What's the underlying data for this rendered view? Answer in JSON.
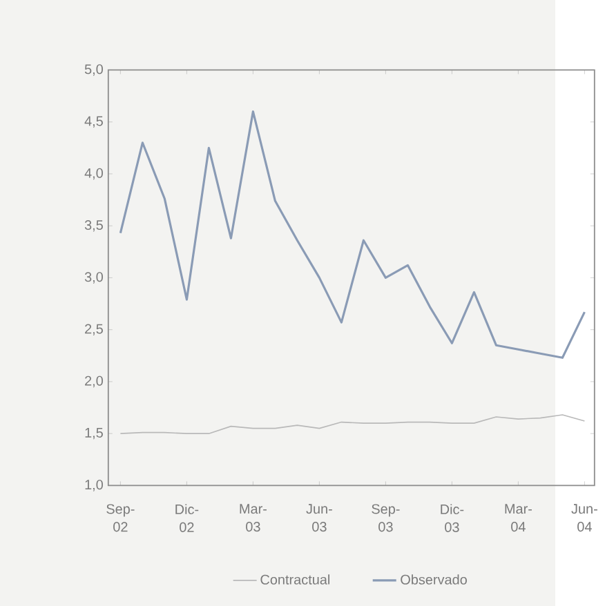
{
  "chart_data": {
    "type": "line",
    "categories": [
      "Sep-02",
      null,
      null,
      "Dic-02",
      null,
      null,
      "Mar-03",
      null,
      null,
      "Jun-03",
      null,
      null,
      "Sep-03",
      null,
      null,
      "Dic-03",
      null,
      null,
      "Mar-04",
      null,
      null,
      "Jun-04"
    ],
    "series": [
      {
        "name": "Contractual",
        "color": "#b9b9b9",
        "values": [
          1.5,
          1.51,
          1.51,
          1.5,
          1.5,
          1.57,
          1.55,
          1.55,
          1.58,
          1.55,
          1.61,
          1.6,
          1.6,
          1.61,
          1.61,
          1.6,
          1.6,
          1.66,
          1.64,
          1.65,
          1.68,
          1.62
        ]
      },
      {
        "name": "Observado",
        "color": "#8a9bb5",
        "values": [
          3.43,
          4.3,
          3.76,
          2.79,
          4.25,
          3.38,
          4.6,
          3.74,
          3.36,
          3.0,
          2.57,
          3.36,
          3.0,
          3.12,
          2.72,
          2.37,
          2.86,
          2.35,
          2.31,
          2.27,
          2.23,
          2.67
        ]
      }
    ],
    "ylim": [
      1.0,
      5.0
    ],
    "yticks": [
      {
        "value": 1.0,
        "label": "1,0"
      },
      {
        "value": 1.5,
        "label": "1,5"
      },
      {
        "value": 2.0,
        "label": "2,0"
      },
      {
        "value": 2.5,
        "label": "2,5"
      },
      {
        "value": 3.0,
        "label": "3,0"
      },
      {
        "value": 3.5,
        "label": "3,5"
      },
      {
        "value": 4.0,
        "label": "4,0"
      },
      {
        "value": 4.5,
        "label": "4,5"
      },
      {
        "value": 5.0,
        "label": "5,0"
      }
    ],
    "grid": false,
    "legend": "bottom",
    "marker": "none",
    "line_style": "solid"
  }
}
